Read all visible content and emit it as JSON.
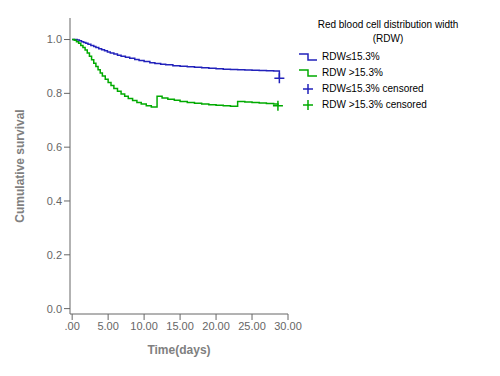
{
  "chart_data": {
    "type": "line",
    "xlabel": "Time(days)",
    "ylabel": "Cumulative survival",
    "legend_title": "Red blood cell distribution width\n(RDW)",
    "legend": "right",
    "grid": false,
    "xlim": [
      -0.3,
      30.0
    ],
    "ylim": [
      -0.02,
      1.08
    ],
    "xticks": [
      {
        "value": 0,
        "label": ".00"
      },
      {
        "value": 5,
        "label": "5.00"
      },
      {
        "value": 10,
        "label": "10.00"
      },
      {
        "value": 15,
        "label": "15.00"
      },
      {
        "value": 20,
        "label": "20.00"
      },
      {
        "value": 25,
        "label": "25.00"
      },
      {
        "value": 30,
        "label": "30.00"
      }
    ],
    "yticks": [
      {
        "value": 0,
        "label": "0.0"
      },
      0.2,
      0.4,
      0.6,
      0.8,
      {
        "value": 1,
        "label": "1.0"
      }
    ],
    "series": [
      {
        "name": "RDW≤15.3%",
        "type": "step",
        "color": "#2222bb",
        "x": [
          0,
          0.4,
          0.7,
          1.0,
          1.3,
          1.6,
          1.9,
          2.2,
          2.6,
          3.0,
          3.3,
          3.7,
          4.1,
          4.5,
          4.9,
          5.3,
          5.8,
          6.3,
          6.8,
          7.4,
          8.0,
          8.7,
          9.3,
          10.0,
          10.8,
          11.5,
          12.3,
          13.0,
          14.0,
          15.0,
          16.0,
          17.0,
          18.0,
          19.0,
          20.0,
          21.0,
          22.0,
          23.0,
          24.0,
          25.0,
          26.0,
          27.0,
          28.0,
          28.8
        ],
        "values": [
          1.0,
          1.0,
          0.998,
          0.995,
          0.992,
          0.989,
          0.986,
          0.982,
          0.978,
          0.974,
          0.97,
          0.966,
          0.962,
          0.958,
          0.954,
          0.95,
          0.946,
          0.942,
          0.938,
          0.934,
          0.93,
          0.926,
          0.922,
          0.918,
          0.914,
          0.911,
          0.908,
          0.906,
          0.903,
          0.901,
          0.899,
          0.897,
          0.895,
          0.893,
          0.891,
          0.89,
          0.889,
          0.888,
          0.887,
          0.886,
          0.885,
          0.884,
          0.883,
          0.856
        ]
      },
      {
        "name": "RDW >15.3%",
        "type": "step",
        "color": "#00aa00",
        "x": [
          0,
          0.3,
          0.6,
          0.9,
          1.2,
          1.5,
          1.8,
          2.1,
          2.4,
          2.7,
          3.0,
          3.3,
          3.6,
          3.9,
          4.2,
          4.6,
          5.0,
          5.4,
          5.8,
          6.3,
          6.8,
          7.3,
          7.8,
          8.4,
          9.0,
          9.6,
          10.3,
          11.0,
          11.8,
          12.5,
          13.3,
          14.2,
          15.0,
          16.0,
          17.0,
          18.0,
          19.0,
          20.0,
          21.0,
          22.0,
          23.0,
          24.0,
          25.0,
          26.0,
          27.0,
          28.0,
          28.6
        ],
        "values": [
          1.0,
          0.997,
          0.992,
          0.986,
          0.978,
          0.97,
          0.961,
          0.95,
          0.938,
          0.925,
          0.912,
          0.9,
          0.888,
          0.876,
          0.864,
          0.852,
          0.84,
          0.829,
          0.818,
          0.808,
          0.798,
          0.789,
          0.781,
          0.773,
          0.766,
          0.76,
          0.754,
          0.749,
          0.789,
          0.783,
          0.778,
          0.774,
          0.77,
          0.766,
          0.763,
          0.76,
          0.758,
          0.756,
          0.754,
          0.752,
          0.77,
          0.768,
          0.766,
          0.764,
          0.762,
          0.76,
          0.754
        ]
      },
      {
        "name": "RDW≤15.3% censored",
        "type": "scatter",
        "marker": "+",
        "color": "#2222bb",
        "x": [
          28.8
        ],
        "values": [
          0.856
        ]
      },
      {
        "name": "RDW >15.3% censored",
        "type": "scatter",
        "marker": "+",
        "color": "#00aa00",
        "x": [
          28.6
        ],
        "values": [
          0.754
        ]
      }
    ]
  }
}
